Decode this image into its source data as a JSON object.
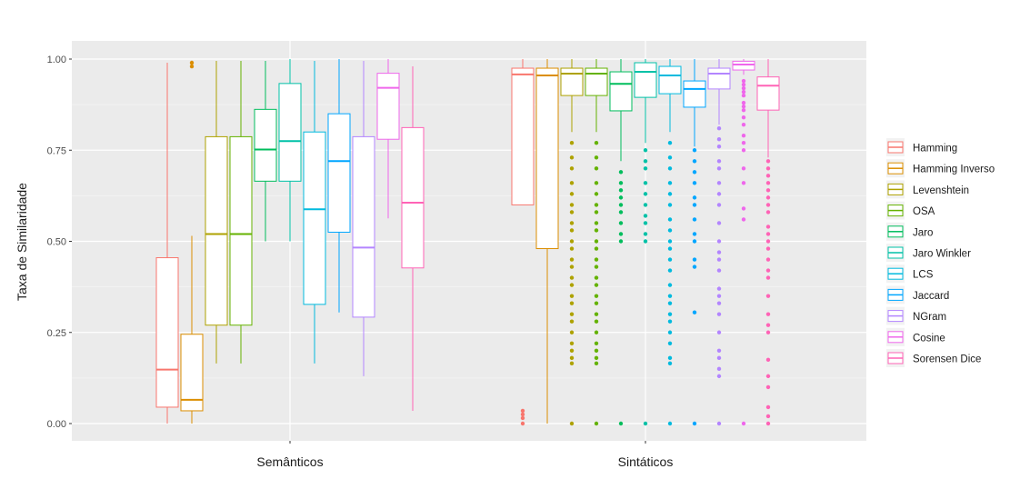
{
  "chart_data": {
    "type": "box",
    "title": "",
    "xlabel": "",
    "ylabel": "Taxa de Similaridade",
    "ylim": [
      -0.05,
      1.05
    ],
    "yticks": [
      0.0,
      0.25,
      0.5,
      0.75,
      1.0
    ],
    "ytick_labels": [
      "0.00",
      "0.25",
      "0.50",
      "0.75",
      "1.00"
    ],
    "categories": [
      "Semânticos",
      "Sintáticos"
    ],
    "legend_position": "right",
    "series": [
      {
        "name": "Hamming",
        "color": "#F8766D",
        "boxes": [
          {
            "min": 0.0,
            "q1": 0.045,
            "median": 0.148,
            "q3": 0.455,
            "max": 0.99,
            "outliers": []
          },
          {
            "min": 0.6,
            "q1": 0.6,
            "median": 0.958,
            "q3": 0.975,
            "max": 1.0,
            "outliers": [
              0.0,
              0.015,
              0.025,
              0.035
            ]
          }
        ]
      },
      {
        "name": "Hamming Inverso",
        "color": "#DB8E00",
        "boxes": [
          {
            "min": 0.0,
            "q1": 0.035,
            "median": 0.065,
            "q3": 0.245,
            "max": 0.515,
            "outliers": [
              0.98,
              0.99
            ]
          },
          {
            "min": 0.0,
            "q1": 0.48,
            "median": 0.955,
            "q3": 0.975,
            "max": 1.0,
            "outliers": []
          }
        ]
      },
      {
        "name": "Levenshtein",
        "color": "#AEA200",
        "boxes": [
          {
            "min": 0.165,
            "q1": 0.27,
            "median": 0.52,
            "q3": 0.787,
            "max": 0.995,
            "outliers": []
          },
          {
            "min": 0.8,
            "q1": 0.9,
            "median": 0.96,
            "q3": 0.975,
            "max": 1.0,
            "outliers": [
              0.0,
              0.165,
              0.18,
              0.2,
              0.22,
              0.25,
              0.28,
              0.3,
              0.33,
              0.35,
              0.38,
              0.4,
              0.43,
              0.45,
              0.48,
              0.5,
              0.53,
              0.55,
              0.58,
              0.6,
              0.63,
              0.66,
              0.7,
              0.73,
              0.77
            ]
          }
        ]
      },
      {
        "name": "OSA",
        "color": "#64B200",
        "boxes": [
          {
            "min": 0.165,
            "q1": 0.27,
            "median": 0.52,
            "q3": 0.787,
            "max": 0.995,
            "outliers": []
          },
          {
            "min": 0.8,
            "q1": 0.9,
            "median": 0.96,
            "q3": 0.975,
            "max": 1.0,
            "outliers": [
              0.0,
              0.165,
              0.18,
              0.2,
              0.22,
              0.25,
              0.28,
              0.3,
              0.33,
              0.35,
              0.38,
              0.4,
              0.43,
              0.45,
              0.48,
              0.5,
              0.53,
              0.55,
              0.58,
              0.6,
              0.63,
              0.66,
              0.7,
              0.73,
              0.77
            ]
          }
        ]
      },
      {
        "name": "Jaro",
        "color": "#00BD5C",
        "boxes": [
          {
            "min": 0.5,
            "q1": 0.665,
            "median": 0.752,
            "q3": 0.862,
            "max": 0.995,
            "outliers": []
          },
          {
            "min": 0.72,
            "q1": 0.858,
            "median": 0.932,
            "q3": 0.965,
            "max": 1.0,
            "outliers": [
              0.0,
              0.5,
              0.52,
              0.55,
              0.58,
              0.6,
              0.62,
              0.64,
              0.66,
              0.69
            ]
          }
        ]
      },
      {
        "name": "Jaro Winkler",
        "color": "#00C1A7",
        "boxes": [
          {
            "min": 0.5,
            "q1": 0.665,
            "median": 0.775,
            "q3": 0.933,
            "max": 1.0,
            "outliers": []
          },
          {
            "min": 0.77,
            "q1": 0.895,
            "median": 0.965,
            "q3": 0.99,
            "max": 1.0,
            "outliers": [
              0.0,
              0.5,
              0.52,
              0.55,
              0.57,
              0.6,
              0.63,
              0.66,
              0.7,
              0.72,
              0.75
            ]
          }
        ]
      },
      {
        "name": "LCS",
        "color": "#00BADE",
        "boxes": [
          {
            "min": 0.165,
            "q1": 0.327,
            "median": 0.588,
            "q3": 0.8,
            "max": 0.995,
            "outliers": []
          },
          {
            "min": 0.8,
            "q1": 0.905,
            "median": 0.955,
            "q3": 0.98,
            "max": 1.0,
            "outliers": [
              0.0,
              0.165,
              0.18,
              0.22,
              0.25,
              0.28,
              0.3,
              0.33,
              0.35,
              0.38,
              0.42,
              0.45,
              0.48,
              0.5,
              0.53,
              0.56,
              0.6,
              0.63,
              0.66,
              0.7,
              0.73,
              0.77
            ]
          }
        ]
      },
      {
        "name": "Jaccard",
        "color": "#00A6FF",
        "boxes": [
          {
            "min": 0.305,
            "q1": 0.525,
            "median": 0.72,
            "q3": 0.85,
            "max": 1.0,
            "outliers": []
          },
          {
            "min": 0.76,
            "q1": 0.868,
            "median": 0.918,
            "q3": 0.94,
            "max": 1.0,
            "outliers": [
              0.0,
              0.305,
              0.43,
              0.45,
              0.5,
              0.52,
              0.56,
              0.6,
              0.62,
              0.66,
              0.69,
              0.72,
              0.75
            ]
          }
        ]
      },
      {
        "name": "NGram",
        "color": "#B385FF",
        "boxes": [
          {
            "min": 0.13,
            "q1": 0.292,
            "median": 0.483,
            "q3": 0.787,
            "max": 0.995,
            "outliers": []
          },
          {
            "min": 0.82,
            "q1": 0.918,
            "median": 0.96,
            "q3": 0.975,
            "max": 1.0,
            "outliers": [
              0.0,
              0.13,
              0.15,
              0.18,
              0.2,
              0.25,
              0.3,
              0.33,
              0.35,
              0.37,
              0.42,
              0.45,
              0.47,
              0.5,
              0.55,
              0.6,
              0.63,
              0.66,
              0.7,
              0.72,
              0.76,
              0.78,
              0.81
            ]
          }
        ]
      },
      {
        "name": "Cosine",
        "color": "#EF67EB",
        "boxes": [
          {
            "min": 0.563,
            "q1": 0.78,
            "median": 0.921,
            "q3": 0.961,
            "max": 1.0,
            "outliers": []
          },
          {
            "min": 0.957,
            "q1": 0.97,
            "median": 0.985,
            "q3": 0.994,
            "max": 1.0,
            "outliers": [
              0.0,
              0.56,
              0.59,
              0.66,
              0.7,
              0.75,
              0.77,
              0.79,
              0.82,
              0.84,
              0.86,
              0.87,
              0.88,
              0.9,
              0.91,
              0.92,
              0.93,
              0.94
            ]
          }
        ]
      },
      {
        "name": "Sorensen Dice",
        "color": "#FF63B6",
        "boxes": [
          {
            "min": 0.035,
            "q1": 0.427,
            "median": 0.606,
            "q3": 0.812,
            "max": 0.98,
            "outliers": []
          },
          {
            "min": 0.73,
            "q1": 0.86,
            "median": 0.927,
            "q3": 0.951,
            "max": 1.0,
            "outliers": [
              0.0,
              0.02,
              0.045,
              0.1,
              0.13,
              0.175,
              0.25,
              0.27,
              0.3,
              0.35,
              0.4,
              0.42,
              0.45,
              0.48,
              0.5,
              0.52,
              0.54,
              0.58,
              0.6,
              0.62,
              0.64,
              0.66,
              0.68,
              0.7,
              0.72
            ]
          }
        ]
      }
    ]
  }
}
